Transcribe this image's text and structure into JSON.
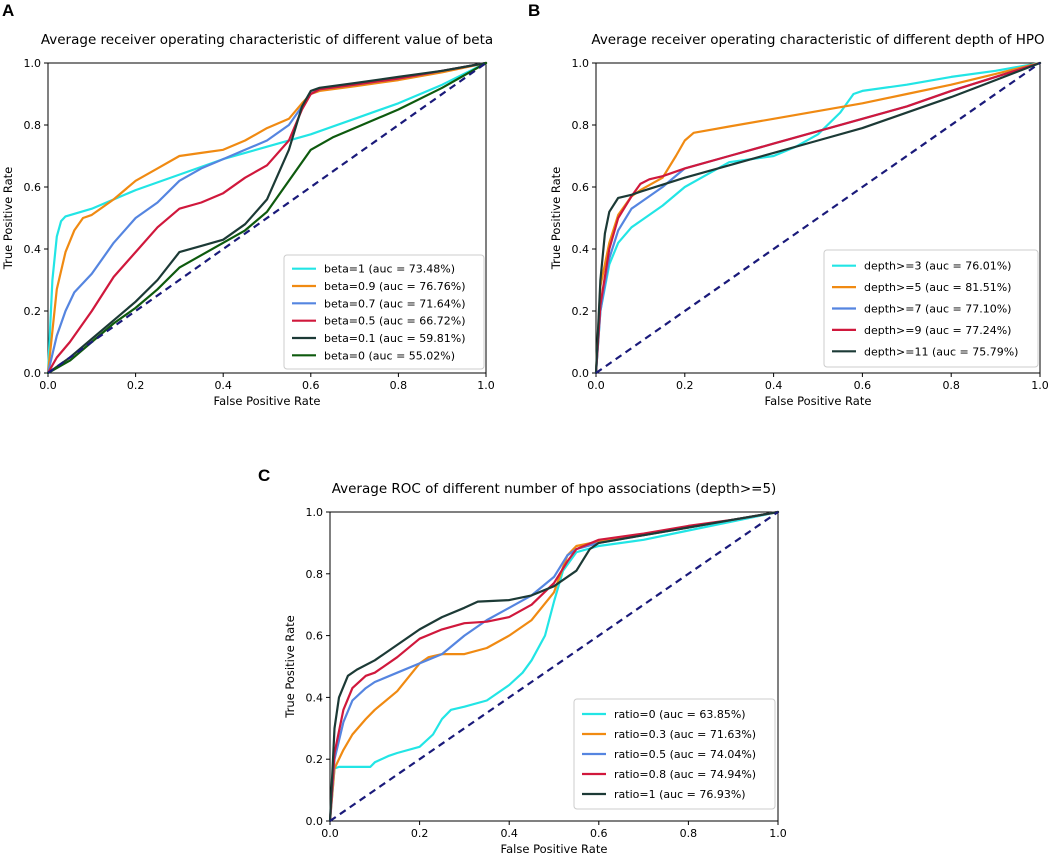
{
  "chart_data": [
    {
      "type": "line",
      "panel": "A",
      "title": "Average receiver operating characteristic of different value of beta",
      "xlabel": "False Positive Rate",
      "ylabel": "True Positive Rate",
      "xlim": [
        0,
        1
      ],
      "ylim": [
        0,
        1
      ],
      "xticks": [
        "0.0",
        "0.2",
        "0.4",
        "0.6",
        "0.8",
        "1.0"
      ],
      "yticks": [
        "0.0",
        "0.2",
        "0.4",
        "0.6",
        "0.8",
        "1.0"
      ],
      "legend_position": "lower-right",
      "diagonal_color": "#1a1a7a",
      "series": [
        {
          "name": "beta=1 (auc = 73.48%)",
          "color": "#22e5e5",
          "x": [
            0,
            0.01,
            0.02,
            0.03,
            0.04,
            0.1,
            0.2,
            0.3,
            0.4,
            0.5,
            0.6,
            0.7,
            0.8,
            0.9,
            1.0
          ],
          "y": [
            0,
            0.3,
            0.44,
            0.49,
            0.505,
            0.53,
            0.59,
            0.64,
            0.69,
            0.73,
            0.77,
            0.82,
            0.87,
            0.93,
            1.0
          ]
        },
        {
          "name": "beta=0.9 (auc = 76.76%)",
          "color": "#f08a12",
          "x": [
            0,
            0.02,
            0.04,
            0.06,
            0.08,
            0.1,
            0.15,
            0.2,
            0.25,
            0.3,
            0.35,
            0.4,
            0.45,
            0.5,
            0.55,
            0.58,
            0.6,
            0.62,
            0.7,
            0.8,
            0.9,
            1.0
          ],
          "y": [
            0,
            0.27,
            0.39,
            0.46,
            0.5,
            0.51,
            0.56,
            0.62,
            0.66,
            0.7,
            0.71,
            0.72,
            0.75,
            0.79,
            0.82,
            0.87,
            0.9,
            0.91,
            0.925,
            0.945,
            0.97,
            1.0
          ]
        },
        {
          "name": "beta=0.7 (auc = 71.64%)",
          "color": "#5585e0",
          "x": [
            0,
            0.02,
            0.04,
            0.06,
            0.1,
            0.15,
            0.2,
            0.25,
            0.3,
            0.35,
            0.4,
            0.45,
            0.5,
            0.55,
            0.58,
            0.6,
            0.62,
            0.7,
            0.8,
            0.9,
            1.0
          ],
          "y": [
            0,
            0.12,
            0.2,
            0.26,
            0.32,
            0.42,
            0.5,
            0.55,
            0.62,
            0.66,
            0.69,
            0.72,
            0.75,
            0.8,
            0.86,
            0.9,
            0.915,
            0.93,
            0.95,
            0.975,
            1.0
          ]
        },
        {
          "name": "beta=0.5 (auc = 66.72%)",
          "color": "#d0183c",
          "x": [
            0,
            0.02,
            0.05,
            0.1,
            0.15,
            0.2,
            0.25,
            0.3,
            0.35,
            0.4,
            0.45,
            0.5,
            0.55,
            0.58,
            0.6,
            0.62,
            0.7,
            0.8,
            0.9,
            1.0
          ],
          "y": [
            0,
            0.05,
            0.1,
            0.2,
            0.31,
            0.39,
            0.47,
            0.53,
            0.55,
            0.58,
            0.63,
            0.67,
            0.75,
            0.85,
            0.9,
            0.915,
            0.93,
            0.95,
            0.975,
            1.0
          ]
        },
        {
          "name": "beta=0.1 (auc = 59.81%)",
          "color": "#1c3a36",
          "x": [
            0,
            0.05,
            0.1,
            0.15,
            0.2,
            0.25,
            0.3,
            0.35,
            0.4,
            0.45,
            0.5,
            0.55,
            0.58,
            0.6,
            0.62,
            0.7,
            0.8,
            0.9,
            1.0
          ],
          "y": [
            0,
            0.05,
            0.11,
            0.17,
            0.23,
            0.3,
            0.39,
            0.41,
            0.43,
            0.48,
            0.56,
            0.72,
            0.86,
            0.91,
            0.92,
            0.935,
            0.955,
            0.975,
            1.0
          ]
        },
        {
          "name": "beta=0 (auc = 55.02%)",
          "color": "#0e5a0e",
          "x": [
            0,
            0.05,
            0.1,
            0.15,
            0.2,
            0.25,
            0.3,
            0.35,
            0.4,
            0.45,
            0.5,
            0.55,
            0.6,
            0.65,
            0.7,
            0.8,
            0.9,
            1.0
          ],
          "y": [
            0,
            0.04,
            0.1,
            0.16,
            0.21,
            0.27,
            0.34,
            0.38,
            0.42,
            0.46,
            0.52,
            0.62,
            0.72,
            0.76,
            0.79,
            0.85,
            0.92,
            1.0
          ]
        }
      ]
    },
    {
      "type": "line",
      "panel": "B",
      "title": "Average receiver operating characteristic of different depth of HPO",
      "xlabel": "False Positive Rate",
      "ylabel": "True Positive Rate",
      "xlim": [
        0,
        1
      ],
      "ylim": [
        0,
        1
      ],
      "xticks": [
        "0.0",
        "0.2",
        "0.4",
        "0.6",
        "0.8",
        "1.0"
      ],
      "yticks": [
        "0.0",
        "0.2",
        "0.4",
        "0.6",
        "0.8",
        "1.0"
      ],
      "legend_position": "lower-right",
      "diagonal_color": "#1a1a7a",
      "series": [
        {
          "name": "depth>=3 (auc = 76.01%)",
          "color": "#22e5e5",
          "x": [
            0,
            0.01,
            0.03,
            0.05,
            0.08,
            0.1,
            0.15,
            0.2,
            0.25,
            0.3,
            0.35,
            0.4,
            0.45,
            0.5,
            0.55,
            0.58,
            0.6,
            0.7,
            0.8,
            0.9,
            1.0
          ],
          "y": [
            0,
            0.2,
            0.35,
            0.42,
            0.47,
            0.49,
            0.54,
            0.6,
            0.64,
            0.68,
            0.69,
            0.7,
            0.73,
            0.77,
            0.84,
            0.9,
            0.91,
            0.93,
            0.955,
            0.975,
            1.0
          ]
        },
        {
          "name": "depth>=5 (auc = 81.51%)",
          "color": "#f08a12",
          "x": [
            0,
            0.01,
            0.03,
            0.05,
            0.08,
            0.1,
            0.15,
            0.18,
            0.2,
            0.22,
            0.3,
            0.4,
            0.5,
            0.6,
            0.7,
            0.8,
            0.9,
            1.0
          ],
          "y": [
            0,
            0.28,
            0.42,
            0.51,
            0.57,
            0.59,
            0.63,
            0.7,
            0.75,
            0.775,
            0.795,
            0.82,
            0.845,
            0.87,
            0.9,
            0.93,
            0.965,
            1.0
          ]
        },
        {
          "name": "depth>=7 (auc = 77.10%)",
          "color": "#5585e0",
          "x": [
            0,
            0.01,
            0.03,
            0.05,
            0.08,
            0.1,
            0.15,
            0.2,
            0.3,
            0.4,
            0.5,
            0.6,
            0.7,
            0.8,
            0.9,
            1.0
          ],
          "y": [
            0,
            0.2,
            0.37,
            0.46,
            0.53,
            0.55,
            0.6,
            0.66,
            0.7,
            0.74,
            0.78,
            0.82,
            0.86,
            0.91,
            0.955,
            1.0
          ]
        },
        {
          "name": "depth>=9 (auc = 77.24%)",
          "color": "#d0183c",
          "x": [
            0,
            0.01,
            0.03,
            0.05,
            0.08,
            0.1,
            0.12,
            0.15,
            0.2,
            0.3,
            0.4,
            0.5,
            0.6,
            0.7,
            0.8,
            0.9,
            1.0
          ],
          "y": [
            0,
            0.22,
            0.4,
            0.5,
            0.57,
            0.61,
            0.625,
            0.635,
            0.66,
            0.7,
            0.74,
            0.78,
            0.82,
            0.86,
            0.91,
            0.955,
            1.0
          ]
        },
        {
          "name": "depth>=11 (auc = 75.79%)",
          "color": "#1c3a36",
          "x": [
            0,
            0.01,
            0.02,
            0.03,
            0.05,
            0.08,
            0.1,
            0.2,
            0.3,
            0.4,
            0.5,
            0.6,
            0.7,
            0.8,
            0.9,
            1.0
          ],
          "y": [
            0,
            0.3,
            0.45,
            0.52,
            0.565,
            0.575,
            0.585,
            0.63,
            0.67,
            0.71,
            0.75,
            0.79,
            0.84,
            0.89,
            0.945,
            1.0
          ]
        }
      ]
    },
    {
      "type": "line",
      "panel": "C",
      "title": "Average ROC of different number of hpo associations (depth>=5)",
      "xlabel": "False Positive Rate",
      "ylabel": "True Positive Rate",
      "xlim": [
        0,
        1
      ],
      "ylim": [
        0,
        1
      ],
      "xticks": [
        "0.0",
        "0.2",
        "0.4",
        "0.6",
        "0.8",
        "1.0"
      ],
      "yticks": [
        "0.0",
        "0.2",
        "0.4",
        "0.6",
        "0.8",
        "1.0"
      ],
      "legend_position": "lower-right",
      "diagonal_color": "#1a1a7a",
      "series": [
        {
          "name": "ratio=0 (auc = 63.85%)",
          "color": "#22e5e5",
          "x": [
            0,
            0.01,
            0.02,
            0.05,
            0.09,
            0.1,
            0.13,
            0.15,
            0.2,
            0.23,
            0.25,
            0.27,
            0.3,
            0.35,
            0.4,
            0.43,
            0.45,
            0.48,
            0.5,
            0.52,
            0.55,
            0.6,
            0.7,
            0.8,
            0.9,
            1.0
          ],
          "y": [
            0,
            0.17,
            0.175,
            0.175,
            0.175,
            0.19,
            0.21,
            0.22,
            0.24,
            0.28,
            0.33,
            0.36,
            0.37,
            0.39,
            0.44,
            0.48,
            0.52,
            0.6,
            0.71,
            0.81,
            0.87,
            0.89,
            0.91,
            0.94,
            0.97,
            1.0
          ]
        },
        {
          "name": "ratio=0.3 (auc = 71.63%)",
          "color": "#f08a12",
          "x": [
            0,
            0.01,
            0.03,
            0.05,
            0.08,
            0.1,
            0.15,
            0.2,
            0.22,
            0.25,
            0.3,
            0.35,
            0.4,
            0.45,
            0.5,
            0.53,
            0.55,
            0.6,
            0.7,
            0.8,
            0.9,
            1.0
          ],
          "y": [
            0,
            0.17,
            0.23,
            0.28,
            0.33,
            0.36,
            0.42,
            0.51,
            0.53,
            0.54,
            0.54,
            0.56,
            0.6,
            0.65,
            0.74,
            0.86,
            0.89,
            0.905,
            0.925,
            0.95,
            0.975,
            1.0
          ]
        },
        {
          "name": "ratio=0.5 (auc = 74.04%)",
          "color": "#5585e0",
          "x": [
            0,
            0.01,
            0.03,
            0.05,
            0.08,
            0.1,
            0.15,
            0.2,
            0.25,
            0.3,
            0.35,
            0.4,
            0.45,
            0.5,
            0.53,
            0.55,
            0.6,
            0.7,
            0.8,
            0.9,
            1.0
          ],
          "y": [
            0,
            0.2,
            0.32,
            0.39,
            0.43,
            0.45,
            0.48,
            0.51,
            0.54,
            0.6,
            0.65,
            0.69,
            0.73,
            0.79,
            0.86,
            0.88,
            0.9,
            0.925,
            0.95,
            0.975,
            1.0
          ]
        },
        {
          "name": "ratio=0.8 (auc = 74.94%)",
          "color": "#d0183c",
          "x": [
            0,
            0.01,
            0.03,
            0.05,
            0.08,
            0.1,
            0.15,
            0.2,
            0.25,
            0.3,
            0.35,
            0.4,
            0.45,
            0.5,
            0.53,
            0.55,
            0.6,
            0.7,
            0.8,
            0.9,
            1.0
          ],
          "y": [
            0,
            0.22,
            0.36,
            0.43,
            0.47,
            0.48,
            0.53,
            0.59,
            0.62,
            0.64,
            0.645,
            0.66,
            0.7,
            0.77,
            0.84,
            0.88,
            0.91,
            0.93,
            0.955,
            0.975,
            1.0
          ]
        },
        {
          "name": "ratio=1 (auc = 76.93%)",
          "color": "#1c3a36",
          "x": [
            0,
            0.01,
            0.02,
            0.04,
            0.06,
            0.1,
            0.15,
            0.2,
            0.25,
            0.3,
            0.33,
            0.4,
            0.45,
            0.5,
            0.55,
            0.58,
            0.6,
            0.7,
            0.8,
            0.9,
            1.0
          ],
          "y": [
            0,
            0.3,
            0.4,
            0.47,
            0.49,
            0.52,
            0.57,
            0.62,
            0.66,
            0.69,
            0.71,
            0.715,
            0.73,
            0.76,
            0.81,
            0.88,
            0.9,
            0.925,
            0.95,
            0.975,
            1.0
          ]
        }
      ]
    }
  ]
}
